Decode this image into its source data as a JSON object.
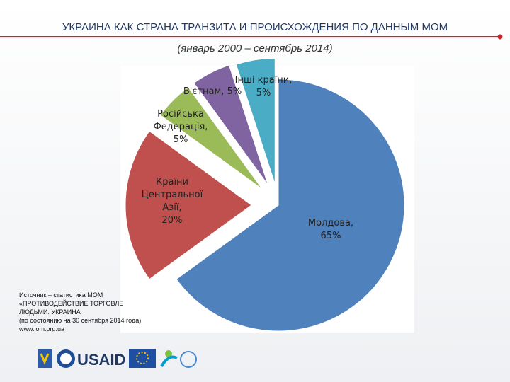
{
  "chart_data": {
    "type": "pie",
    "title": "УКРАИНА КАК СТРАНА ТРАНЗИТА И ПРОИСХОЖДЕНИЯ ПО ДАННЫМ МОМ",
    "subtitle": "(январь 2000 – сентябрь 2014)",
    "categories": [
      "Молдова,",
      "Країни\nЦентральної\nАзії,",
      "Російська\nФедерація,",
      "В'єтнам,",
      "Інші країни,"
    ],
    "values": [
      65,
      20,
      5,
      5,
      5
    ],
    "value_labels": [
      "65%",
      "20%",
      "5%",
      "5%",
      "5%"
    ],
    "colors": [
      "#4f81bd",
      "#c0504d",
      "#9bbb59",
      "#8064a2",
      "#4bacc6"
    ],
    "source": [
      "Источник – статистика МОМ",
      "«ПРОТИВОДЕЙСТВИЕ ТОРГОВЛЕ",
      "ЛЮДЬМИ: УКРАИНА",
      "(по состоянию на 30 сентября 2014 года)",
      "www.iom.org.ua"
    ],
    "logo_text": "USAID"
  }
}
